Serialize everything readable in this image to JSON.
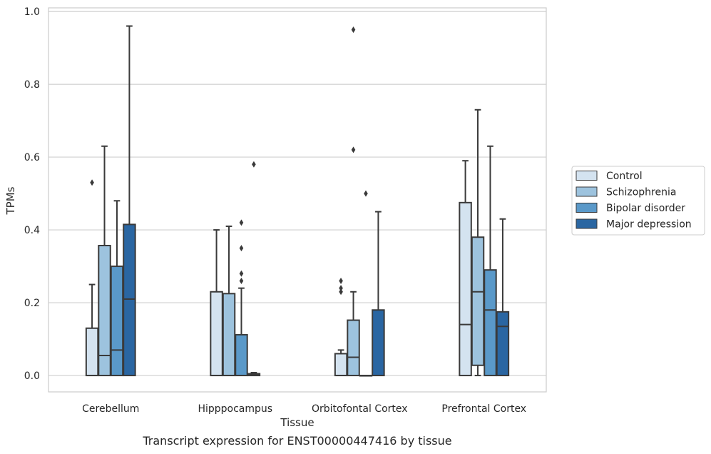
{
  "caption": "Transcript expression for ENST00000447416 by tissue",
  "colors": {
    "Control": "#d4e3f0",
    "Schizophrenia": "#9dc3de",
    "Bipolar disorder": "#5a99c9",
    "Major depression": "#2a66a2",
    "stroke": "#3a3a3a",
    "grid": "#cfcfcf",
    "frame": "#cccccc"
  },
  "chart_data": {
    "type": "box",
    "xlabel": "Tissue",
    "ylabel": "TPMs",
    "ylim": [
      -0.045,
      1.01
    ],
    "yticks": [
      0.0,
      0.2,
      0.4,
      0.6,
      0.8,
      1.0
    ],
    "ytick_labels": [
      "0.0",
      "0.2",
      "0.4",
      "0.6",
      "0.8",
      "1.0"
    ],
    "grid": true,
    "legend_position": "right",
    "categories": [
      "Cerebellum",
      "Hipppocampus",
      "Orbitofontal Cortex",
      "Prefrontal Cortex"
    ],
    "series": [
      {
        "name": "Control",
        "boxes": [
          {
            "low": 0.0,
            "q1": 0.0,
            "median": 0.0,
            "q3": 0.13,
            "high": 0.25,
            "outliers": [
              0.53
            ]
          },
          {
            "low": 0.0,
            "q1": 0.0,
            "median": 0.0,
            "q3": 0.23,
            "high": 0.4,
            "outliers": []
          },
          {
            "low": 0.0,
            "q1": 0.0,
            "median": 0.0,
            "q3": 0.06,
            "high": 0.07,
            "outliers": [
              0.23,
              0.24,
              0.26
            ]
          },
          {
            "low": 0.0,
            "q1": 0.0,
            "median": 0.14,
            "q3": 0.475,
            "high": 0.59,
            "outliers": []
          }
        ]
      },
      {
        "name": "Schizophrenia",
        "boxes": [
          {
            "low": 0.0,
            "q1": 0.0,
            "median": 0.055,
            "q3": 0.357,
            "high": 0.63,
            "outliers": []
          },
          {
            "low": 0.0,
            "q1": 0.0,
            "median": 0.0,
            "q3": 0.225,
            "high": 0.41,
            "outliers": []
          },
          {
            "low": 0.0,
            "q1": 0.0,
            "median": 0.05,
            "q3": 0.152,
            "high": 0.23,
            "outliers": [
              0.62,
              0.95
            ]
          },
          {
            "low": 0.0,
            "q1": 0.028,
            "median": 0.23,
            "q3": 0.38,
            "high": 0.73,
            "outliers": []
          }
        ]
      },
      {
        "name": "Bipolar disorder",
        "boxes": [
          {
            "low": 0.0,
            "q1": 0.0,
            "median": 0.07,
            "q3": 0.3,
            "high": 0.48,
            "outliers": []
          },
          {
            "low": 0.0,
            "q1": 0.0,
            "median": 0.0,
            "q3": 0.112,
            "high": 0.24,
            "outliers": [
              0.26,
              0.28,
              0.35,
              0.42
            ]
          },
          {
            "low": 0.0,
            "q1": 0.0,
            "median": 0.0,
            "q3": 0.0,
            "high": 0.0,
            "outliers": [
              0.5
            ]
          },
          {
            "low": 0.0,
            "q1": 0.0,
            "median": 0.18,
            "q3": 0.29,
            "high": 0.63,
            "outliers": []
          }
        ]
      },
      {
        "name": "Major depression",
        "boxes": [
          {
            "low": 0.0,
            "q1": 0.0,
            "median": 0.21,
            "q3": 0.415,
            "high": 0.96,
            "outliers": []
          },
          {
            "low": 0.0,
            "q1": 0.0,
            "median": 0.002,
            "q3": 0.005,
            "high": 0.008,
            "outliers": [
              0.58
            ]
          },
          {
            "low": 0.0,
            "q1": 0.0,
            "median": 0.0,
            "q3": 0.18,
            "high": 0.45,
            "outliers": []
          },
          {
            "low": 0.0,
            "q1": 0.0,
            "median": 0.135,
            "q3": 0.175,
            "high": 0.43,
            "outliers": []
          }
        ]
      }
    ]
  }
}
